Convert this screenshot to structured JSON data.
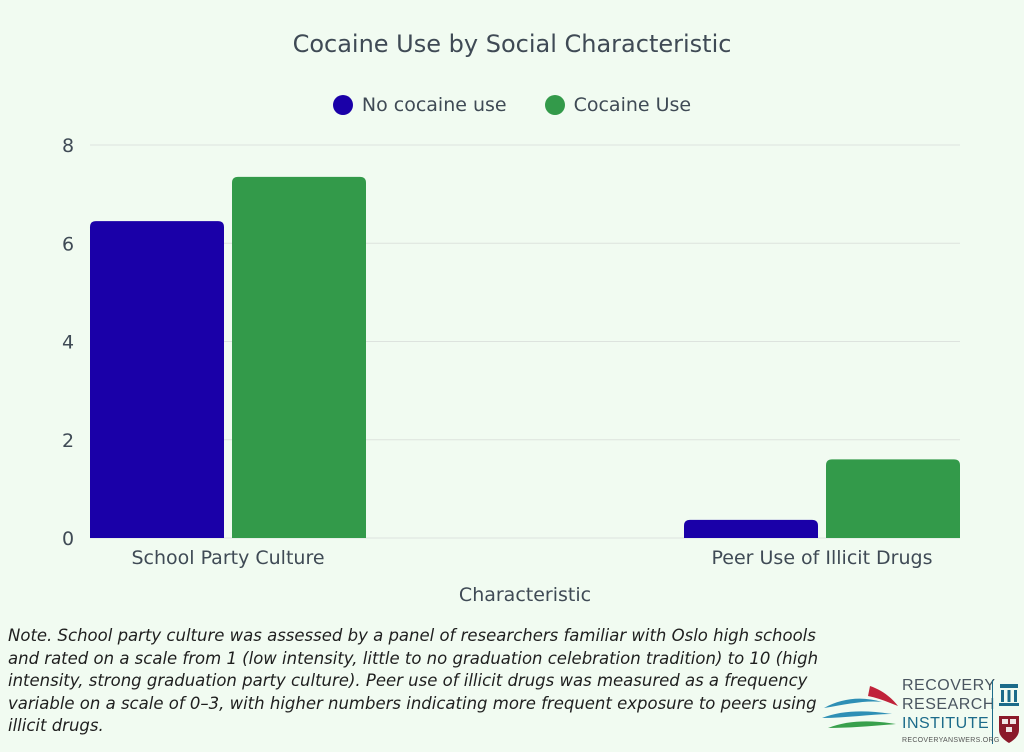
{
  "colors": {
    "no_cocaine": "#1a00a8",
    "cocaine": "#339a4a",
    "grid": "#dde3de",
    "axis_text": "#3f4a55",
    "background": "#f1fbf1"
  },
  "chart_data": {
    "type": "bar",
    "title": "Cocaine Use by Social Characteristic",
    "xlabel": "Characteristic",
    "ylabel": "",
    "categories": [
      "School Party Culture",
      "Peer Use of Illicit Drugs"
    ],
    "series": [
      {
        "name": "No cocaine use",
        "values": [
          6.45,
          0.37
        ]
      },
      {
        "name": "Cocaine Use",
        "values": [
          7.35,
          1.6
        ]
      }
    ],
    "ylim": [
      0,
      8
    ],
    "yticks": [
      0,
      2,
      4,
      6,
      8
    ],
    "grid": true,
    "legend_position": "top-center"
  },
  "note": "Note. School party culture was assessed by a panel of researchers familiar with Oslo high schools and rated on a scale from 1 (low intensity, little to no graduation celebration tradition) to 10 (high intensity, strong graduation party culture). Peer use of illicit drugs was measured as a frequency variable on a scale of 0–3, with higher numbers indicating more frequent exposure to peers using illicit drugs.",
  "logo": {
    "line1": "RECOVERY",
    "line2": "RESEARCH",
    "line3": "INSTITUTE",
    "url": "RECOVERYANSWERS.ORG"
  }
}
